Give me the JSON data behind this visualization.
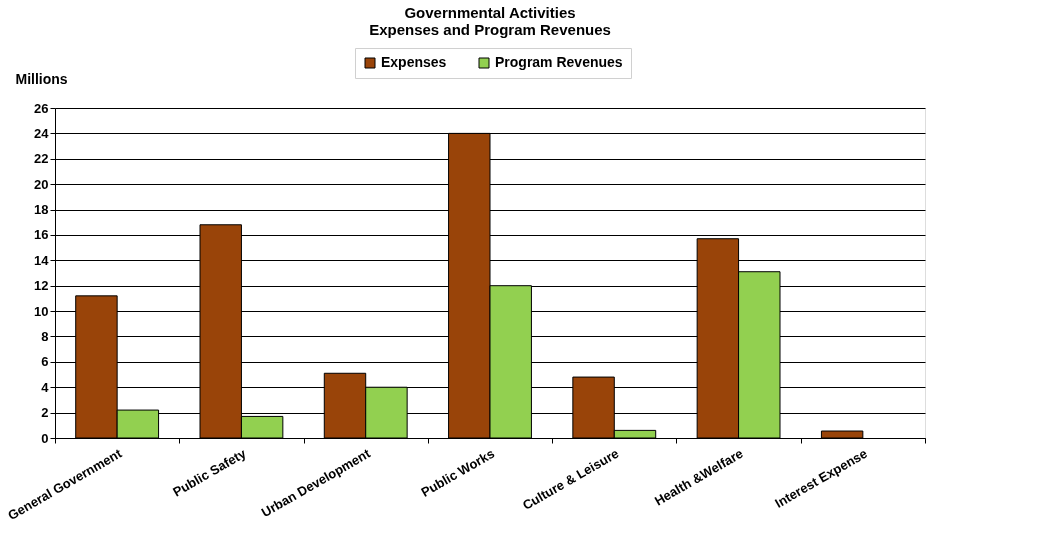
{
  "chart_data": {
    "type": "bar",
    "title": [
      "Governmental Activities",
      "Expenses and Program Revenues"
    ],
    "ylabel": "Millions",
    "categories": [
      "General Government",
      "Public Safety",
      "Urban Development",
      "Public Works",
      "Culture & Leisure",
      "Health &Welfare",
      "Interest Expense"
    ],
    "series": [
      {
        "name": "Expenses",
        "color": "#994409",
        "values": [
          11.2,
          16.8,
          5.1,
          24.0,
          4.8,
          15.7,
          0.55
        ]
      },
      {
        "name": "Program Revenues",
        "color": "#92d050",
        "values": [
          2.2,
          1.7,
          4.0,
          12.0,
          0.6,
          13.1,
          null
        ]
      }
    ],
    "ylim": [
      0,
      26
    ],
    "yticks": [
      0,
      2,
      4,
      6,
      8,
      10,
      12,
      14,
      16,
      18,
      20,
      22,
      24,
      26
    ],
    "grid": "y",
    "legend": "top"
  }
}
